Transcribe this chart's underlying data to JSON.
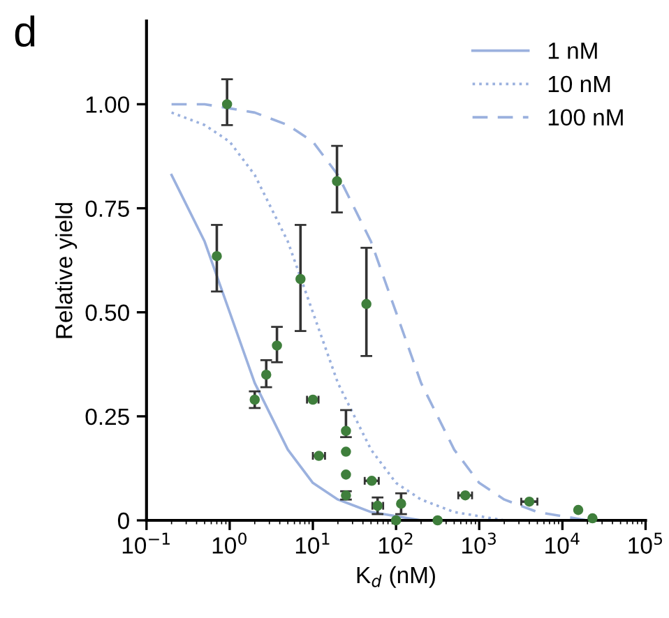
{
  "chart_data": {
    "type": "scatter",
    "xlabel": "K$_{d}$ (nM)",
    "ylabel": "Relative yield",
    "annotations": [
      "d"
    ],
    "log": "x",
    "xlim": [
      0.1,
      100000
    ],
    "ylim": [
      0,
      1.2
    ],
    "xticks": [
      {
        "value": 0.1,
        "label": "10$^{−1}$"
      },
      {
        "value": 1,
        "label": "10$^{0}$"
      },
      {
        "value": 10,
        "label": "10$^{1}$"
      },
      {
        "value": 100,
        "label": "10$^{2}$"
      },
      {
        "value": 1000,
        "label": "10$^{3}$"
      },
      {
        "value": 10000,
        "label": "10$^{4}$"
      },
      {
        "value": 100000,
        "label": "10$^{5}$"
      }
    ],
    "yticks": [
      0,
      {
        "value": 0.25,
        "label": "0.25"
      },
      {
        "value": 0.5,
        "label": "0.50"
      },
      {
        "value": 0.75,
        "label": "0.75"
      },
      {
        "value": 1,
        "label": "1.00"
      }
    ],
    "grid": false,
    "legend": "top right",
    "series": [
      {
        "name": "1 nM",
        "type": "line",
        "line_style": "solid",
        "color": "#9bb1de",
        "x": [
          0.2,
          0.5,
          1,
          2,
          5,
          10,
          20,
          50,
          100,
          200,
          500,
          1000,
          2000,
          5000,
          10000,
          20000,
          50000,
          100000
        ],
        "values": [
          0.83,
          0.67,
          0.5,
          0.33,
          0.17,
          0.09,
          0.05,
          0.02,
          0.01,
          0,
          0,
          0,
          0,
          0,
          0,
          0,
          0,
          0
        ]
      },
      {
        "name": "10 nM",
        "type": "line",
        "line_style": "dotted",
        "color": "#9bb1de",
        "x": [
          0.2,
          0.5,
          1,
          2,
          5,
          10,
          20,
          50,
          100,
          200,
          500,
          1000,
          2000,
          5000,
          10000,
          20000,
          50000,
          100000
        ],
        "values": [
          0.98,
          0.95,
          0.91,
          0.83,
          0.67,
          0.5,
          0.33,
          0.17,
          0.09,
          0.05,
          0.02,
          0.01,
          0,
          0,
          0,
          0,
          0,
          0
        ]
      },
      {
        "name": "100 nM",
        "type": "line",
        "line_style": "dashed",
        "color": "#9bb1de",
        "x": [
          0.2,
          0.5,
          1,
          2,
          5,
          10,
          20,
          50,
          100,
          200,
          500,
          1000,
          2000,
          5000,
          10000,
          20000,
          50000,
          100000
        ],
        "values": [
          1.0,
          1.0,
          0.99,
          0.98,
          0.95,
          0.91,
          0.83,
          0.67,
          0.5,
          0.33,
          0.17,
          0.09,
          0.05,
          0.02,
          0.01,
          0,
          0,
          0
        ]
      },
      {
        "marker": "circle",
        "color": "#3f7f3c",
        "x": [
          0.93,
          0.7,
          7.1,
          19.5,
          44,
          2.0,
          2.75,
          3.7,
          10,
          11.8,
          25,
          25,
          25,
          25,
          51,
          60,
          115,
          100,
          316,
          680,
          4000,
          15500,
          23000
        ],
        "values": [
          1.0,
          0.635,
          0.58,
          0.815,
          0.52,
          0.29,
          0.35,
          0.42,
          0.29,
          0.155,
          0.215,
          0.165,
          0.11,
          0.06,
          0.095,
          0.035,
          0.04,
          0,
          0,
          0.06,
          0.045,
          0.025,
          0.005
        ],
        "errors": [
          [
            0.95,
            1.06
          ],
          [
            0.55,
            0.71
          ],
          [
            0.455,
            0.71
          ],
          [
            0.74,
            0.9
          ],
          [
            0.395,
            0.655
          ],
          [
            0.27,
            0.31
          ],
          [
            0.32,
            0.385
          ],
          [
            0.38,
            0.465
          ],
          null,
          null,
          [
            0.2,
            0.265
          ],
          null,
          null,
          [
            0.05,
            0.07
          ],
          null,
          [
            0.015,
            0.055
          ],
          [
            0.015,
            0.065
          ],
          null,
          null,
          null,
          null,
          null,
          null
        ],
        "xerrors": [
          null,
          null,
          null,
          null,
          null,
          null,
          null,
          null,
          [
            8.5,
            11.7
          ],
          [
            10,
            14
          ],
          null,
          null,
          null,
          null,
          [
            42,
            62
          ],
          [
            52,
            70
          ],
          null,
          null,
          null,
          [
            560,
            820
          ],
          [
            3200,
            5000
          ],
          null,
          null
        ]
      }
    ]
  }
}
